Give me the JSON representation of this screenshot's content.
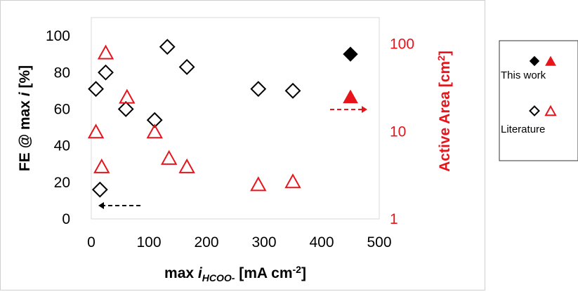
{
  "chart_data": {
    "type": "scatter",
    "x_axis": {
      "label_parts": [
        "max ",
        "i",
        "HCOO-",
        " [mA cm",
        "-2",
        "]"
      ],
      "ticks": [
        "0",
        "100",
        "200",
        "300",
        "400",
        "500"
      ],
      "range": [
        0,
        500
      ]
    },
    "y_left": {
      "label_parts": [
        "FE @ max ",
        "i",
        " [%]"
      ],
      "ticks": [
        "0",
        "20",
        "40",
        "60",
        "80",
        "100"
      ],
      "range": [
        0,
        110
      ],
      "color": "#000000"
    },
    "y_right": {
      "label_parts": [
        "Active Area [cm",
        "2",
        "]"
      ],
      "ticks": [
        "1",
        "10",
        "100"
      ],
      "scale": "log",
      "range": [
        1,
        200
      ],
      "color": "#e8141b"
    },
    "series": [
      {
        "name": "Literature",
        "axis": "left",
        "marker": "open-diamond",
        "color": "#000000",
        "points": [
          [
            8,
            71
          ],
          [
            15,
            16
          ],
          [
            25,
            80
          ],
          [
            60,
            60
          ],
          [
            110,
            54
          ],
          [
            132,
            94
          ],
          [
            166,
            83
          ],
          [
            290,
            71
          ],
          [
            350,
            70
          ]
        ]
      },
      {
        "name": "Literature",
        "axis": "right",
        "marker": "open-triangle",
        "color": "#e8141b",
        "points": [
          [
            8,
            10
          ],
          [
            18,
            4
          ],
          [
            25,
            80
          ],
          [
            62,
            25
          ],
          [
            110,
            10
          ],
          [
            135,
            5
          ],
          [
            166,
            4
          ],
          [
            290,
            2.5
          ],
          [
            350,
            2.7
          ]
        ]
      },
      {
        "name": "This work",
        "axis": "left",
        "marker": "filled-diamond",
        "color": "#000000",
        "points": [
          [
            450,
            90
          ]
        ]
      },
      {
        "name": "This work",
        "axis": "right",
        "marker": "filled-triangle",
        "color": "#e8141b",
        "points": [
          [
            450,
            25
          ]
        ]
      }
    ],
    "legend": {
      "position": "right",
      "entries": [
        {
          "label": "This work",
          "markers": [
            "filled-diamond",
            "filled-triangle"
          ]
        },
        {
          "label": "Literature",
          "markers": [
            "open-diamond",
            "open-triangle"
          ]
        }
      ]
    },
    "annotations": [
      {
        "type": "dashed-arrow",
        "direction": "left",
        "color": "#000000",
        "meaning": "left axis"
      },
      {
        "type": "dashed-arrow",
        "direction": "right",
        "color": "#e8141b",
        "meaning": "right axis"
      }
    ],
    "grid": false
  }
}
